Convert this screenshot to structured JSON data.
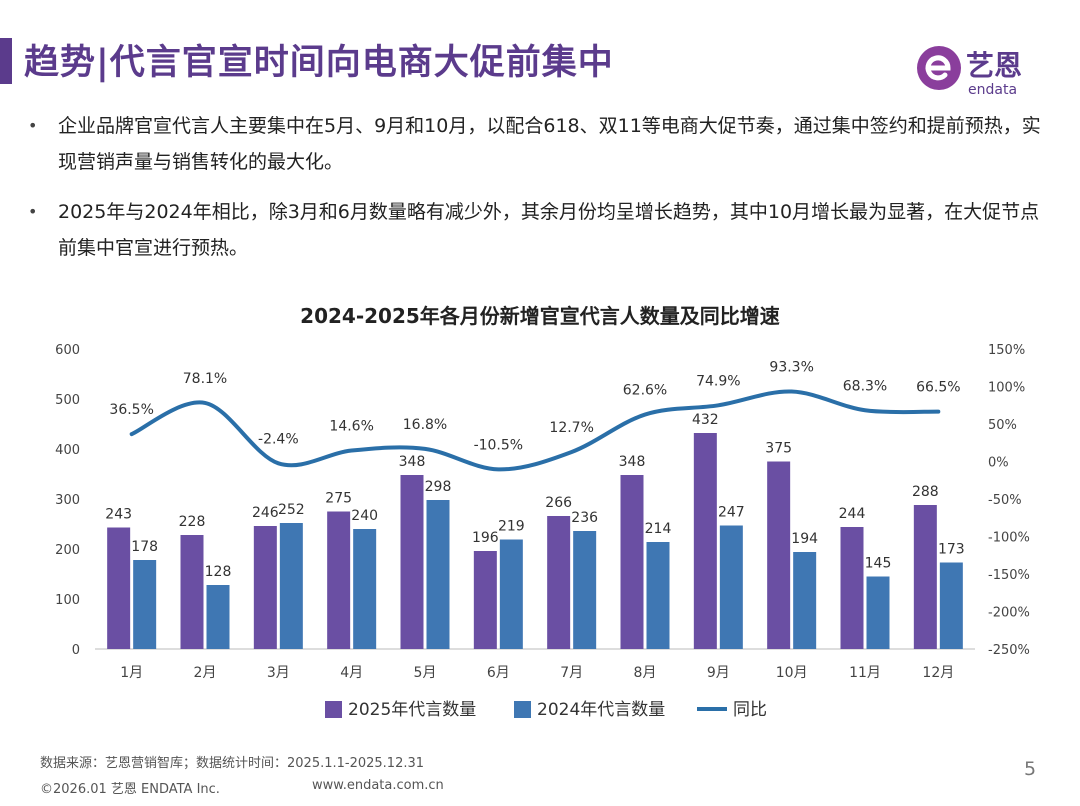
{
  "header": {
    "title": "趋势|代言官宣时间向电商大促前集中",
    "logo_brand_cn": "艺恩",
    "logo_brand_en": "endata"
  },
  "bullets": [
    {
      "text": "企业品牌官宣代言人主要集中在5月、9月和10月，以配合618、双11等电商大促节奏，通过集中签约和提前预热，实现营销声量与销售转化的最大化。"
    },
    {
      "text": "2025年与2024年相比，除3月和6月数量略有减少外，其余月份均呈增长趋势，其中10月增长最为显著，在大促节点前集中官宣进行预热。"
    }
  ],
  "chart_data": {
    "type": "bar",
    "title": "2024-2025年各月份新增官宣代言人数量及同比增速",
    "categories": [
      "1月",
      "2月",
      "3月",
      "4月",
      "5月",
      "6月",
      "7月",
      "8月",
      "9月",
      "10月",
      "11月",
      "12月"
    ],
    "series": [
      {
        "name": "2025年代言数量",
        "kind": "bar",
        "color": "#6a4fa3",
        "values": [
          243,
          228,
          246,
          275,
          348,
          196,
          266,
          348,
          432,
          375,
          244,
          288
        ]
      },
      {
        "name": "2024年代言数量",
        "kind": "bar",
        "color": "#3f77b3",
        "values": [
          178,
          128,
          252,
          240,
          298,
          219,
          236,
          214,
          247,
          194,
          145,
          173
        ]
      },
      {
        "name": "同比",
        "kind": "line",
        "axis": "right",
        "color": "#2a6fa8",
        "values": [
          36.5,
          78.1,
          -2.4,
          14.6,
          16.8,
          -10.5,
          12.7,
          62.6,
          74.9,
          93.3,
          68.3,
          66.5
        ],
        "labels": [
          "36.5%",
          "78.1%",
          "-2.4%",
          "14.6%",
          "16.8%",
          "-10.5%",
          "12.7%",
          "62.6%",
          "74.9%",
          "93.3%",
          "68.3%",
          "66.5%"
        ]
      }
    ],
    "ylim": [
      0,
      600
    ],
    "yticks": [
      "0",
      "100",
      "200",
      "300",
      "400",
      "500",
      "600"
    ],
    "y2lim": [
      -250,
      150
    ],
    "y2ticks": [
      "-250%",
      "-200%",
      "-150%",
      "-100%",
      "-50%",
      "0%",
      "50%",
      "100%",
      "150%"
    ],
    "grid": false,
    "legend_position": "bottom"
  },
  "footer": {
    "source": "数据来源：艺恩营销智库；数据统计时间：2025.1.1-2025.12.31",
    "copyright": "©2026.01 艺恩 ENDATA Inc.",
    "website": "www.endata.com.cn",
    "page_number": "5"
  },
  "colors": {
    "brand": "#5b3b8c",
    "bar2025": "#6a4fa3",
    "bar2024": "#3f77b3",
    "line": "#2a6fa8"
  }
}
